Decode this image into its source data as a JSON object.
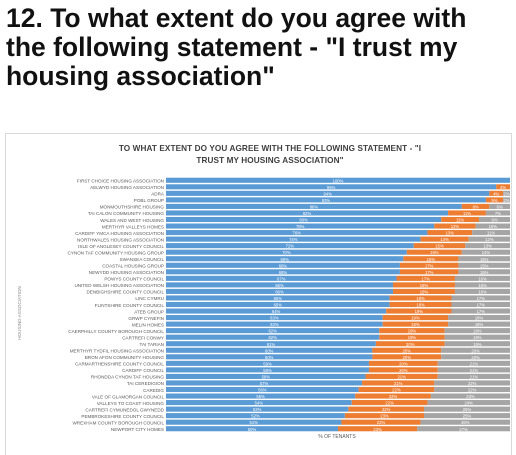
{
  "page": {
    "heading": "12. To what extent do you agree with the following statement - \"I trust my housing association\""
  },
  "chart_data": {
    "type": "bar",
    "orientation": "horizontal",
    "stacked": true,
    "title_line1": "TO WHAT EXTENT DO YOU AGREE WITH THE FOLLOWING STATEMENT - \"I",
    "title_line2": "TRUST MY HOUSING ASSOCIATION\"",
    "xlabel": "% OF TENANTS",
    "ylabel": "HOUSING ASSOCIATION",
    "xlim": [
      0,
      100
    ],
    "colors": [
      "#5b9bd5",
      "#ed7d31",
      "#a5a5a5"
    ],
    "categories": [
      "FIRST CHOICE HOUSING ASSOCIATION",
      "AELWYD HOUSING ASSOCIATION",
      "ADRA",
      "POBL GROUP",
      "MONMOUTHSHIRE HOUSING",
      "TAI CALON COMMUNITY HOUSING",
      "WALES AND WEST HOUSING",
      "MERTHYR VALLEYS HOMES",
      "CARDIFF YMCA HOUSING ASSOCIATION",
      "NORTHWALES HOUSING ASSOCIATION",
      "ISLE OF ANGLESEY COUNTY COUNCIL",
      "CYNON TAF COMMUNITY HOUSING GROUP",
      "SWANSEA COUNCIL",
      "COASTAL HOUSING GROUP",
      "NEWYDD HOUSING ASSOCIATION",
      "POWYS COUNTY COUNCIL",
      "UNITED WELSH HOUSING ASSOCIATION",
      "DENBIGHSHIRE COUNTY COUNCIL",
      "LINC CYMRU",
      "FLINTSHIRE COUNTY COUNCIL",
      "ATEB GROUP",
      "GRWP CYNEFIN",
      "MELIN HOMES",
      "CAERPHILLY COUNTY BOROUGH COUNCIL",
      "CARTREFI CONWY",
      "TAI TARIAN",
      "MERTHYR TYDFIL HOUSING ASSOCIATION",
      "BRON AFON COMMUNITY HOUSING",
      "CARMARTHENSHIRE COUNTY COUNCIL",
      "CARDIFF COUNCIL",
      "RHONDDA CYNON TAF HOUSING",
      "TAI CEREDIGION",
      "CAREDIG",
      "VALE OF GLAMORGAN COUNCIL",
      "VALLEYS TO COAST HOUSING",
      "CARTREFI CYMUNEDOL GWYNEDD",
      "PEMBROKESHIRE COUNTY COUNCIL",
      "WREXHAM COUNTY BOROUGH COUNCIL",
      "NEWPORT CITY HOMES"
    ],
    "series": [
      {
        "values": [
          100,
          96,
          94,
          93,
          86,
          82,
          80,
          78,
          76,
          74,
          72,
          70,
          69,
          68,
          68,
          67,
          66,
          66,
          65,
          65,
          64,
          63,
          63,
          62,
          62,
          61,
          60,
          60,
          59,
          59,
          58,
          57,
          56,
          55,
          54,
          53,
          52,
          51,
          50
        ]
      },
      {
        "values": [
          0,
          4,
          4,
          5,
          8,
          11,
          11,
          12,
          13,
          14,
          15,
          16,
          16,
          17,
          17,
          17,
          18,
          18,
          18,
          18,
          19,
          19,
          19,
          19,
          19,
          20,
          20,
          20,
          20,
          20,
          21,
          21,
          22,
          22,
          22,
          22,
          23,
          23,
          23
        ]
      },
      {
        "values": [
          0,
          0,
          2,
          2,
          6,
          7,
          9,
          10,
          11,
          12,
          13,
          14,
          15,
          15,
          15,
          16,
          16,
          16,
          17,
          17,
          17,
          18,
          18,
          19,
          19,
          19,
          20,
          20,
          21,
          21,
          21,
          22,
          22,
          23,
          24,
          25,
          25,
          26,
          27
        ]
      }
    ]
  }
}
